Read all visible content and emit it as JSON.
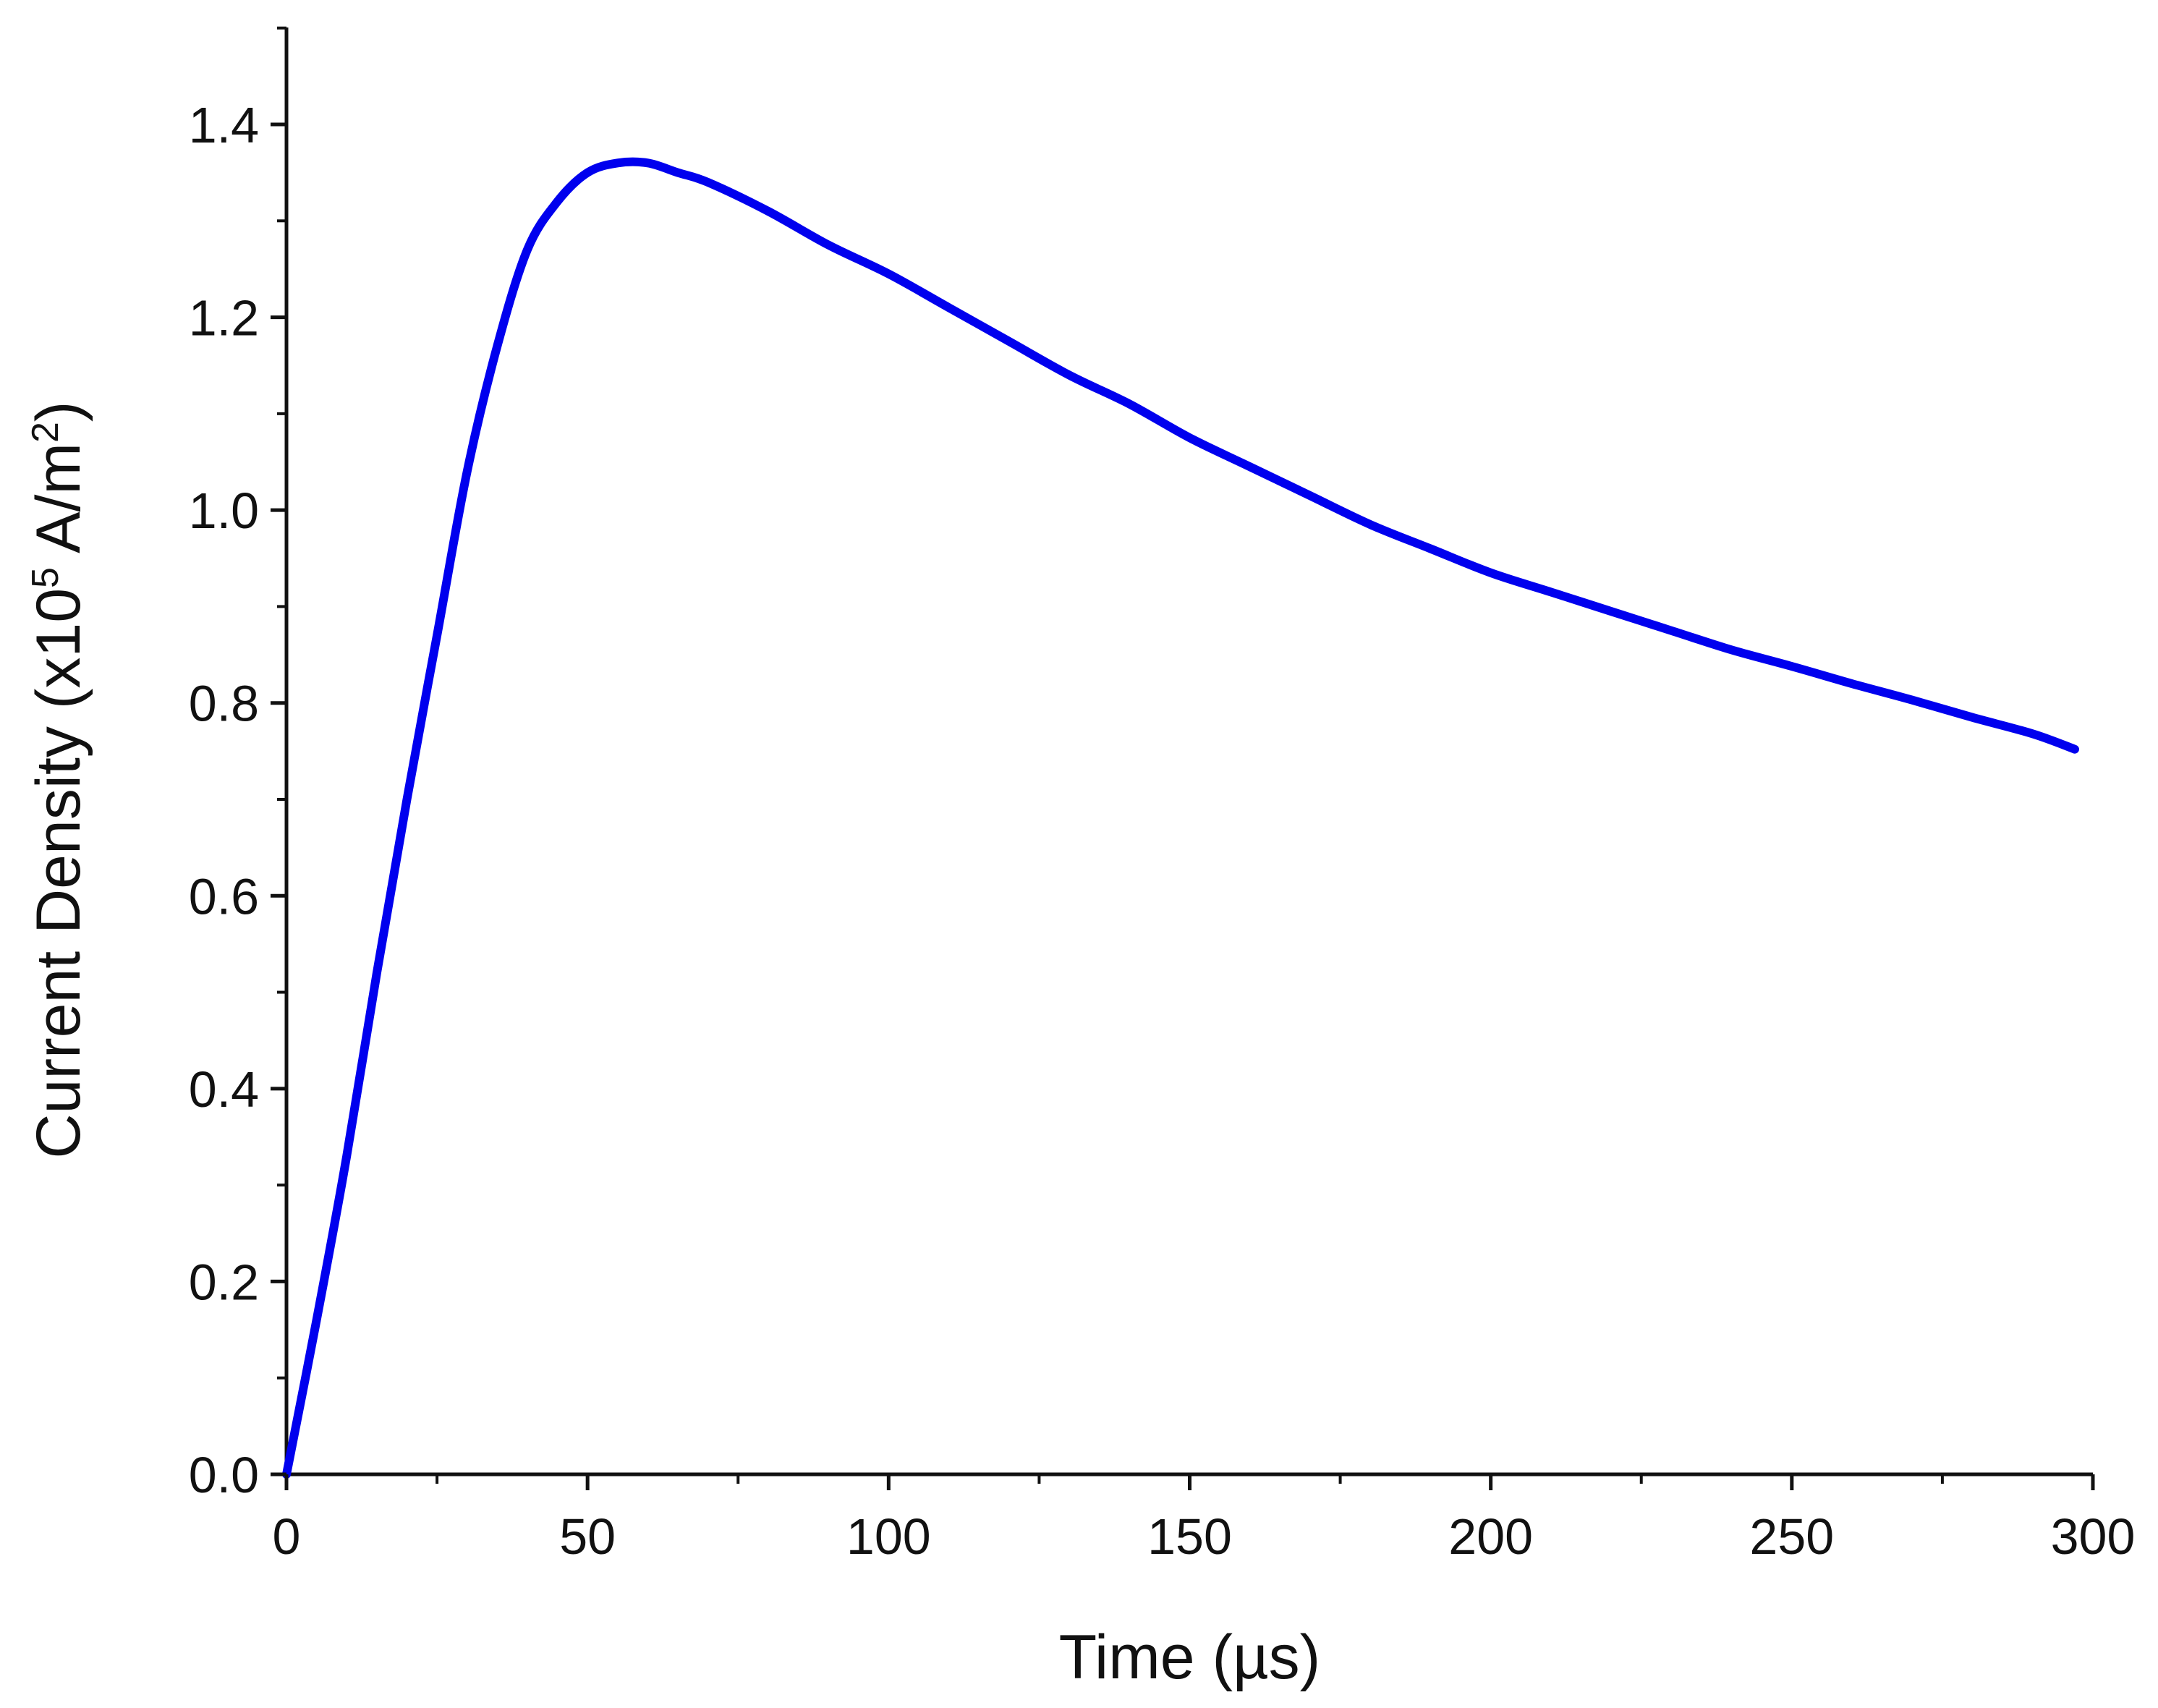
{
  "chart_data": {
    "type": "line",
    "xlabel": "Time (µs)",
    "ylabel": {
      "prefix": "Current Density   (x10",
      "superscript": "5",
      "middle": " A/m",
      "superscript2": "2",
      "suffix": ")"
    },
    "xlim": [
      0,
      300
    ],
    "ylim": [
      0,
      1.5
    ],
    "xticks": [
      0,
      50,
      100,
      150,
      200,
      250,
      300
    ],
    "xtick_labels": [
      "0",
      "50",
      "100",
      "150",
      "200",
      "250",
      "300"
    ],
    "yticks": [
      0.0,
      0.2,
      0.4,
      0.6,
      0.8,
      1.0,
      1.2,
      1.4
    ],
    "ytick_labels": [
      "0.0",
      "0.2",
      "0.4",
      "0.6",
      "0.8",
      "1.0",
      "1.2",
      "1.4"
    ],
    "grid": false,
    "legend": "none",
    "series": [
      {
        "color": "#0000ee",
        "x": [
          0,
          5,
          10,
          15,
          20,
          25,
          30,
          35,
          40,
          45,
          50,
          55,
          60,
          65,
          70,
          80,
          90,
          100,
          110,
          120,
          130,
          140,
          150,
          160,
          170,
          180,
          190,
          200,
          210,
          220,
          230,
          240,
          250,
          260,
          270,
          280,
          290,
          297
        ],
        "y": [
          0.0,
          0.16,
          0.33,
          0.52,
          0.7,
          0.87,
          1.04,
          1.17,
          1.27,
          1.32,
          1.35,
          1.36,
          1.36,
          1.35,
          1.34,
          1.31,
          1.275,
          1.245,
          1.21,
          1.175,
          1.14,
          1.11,
          1.075,
          1.045,
          1.015,
          0.985,
          0.96,
          0.935,
          0.915,
          0.895,
          0.875,
          0.855,
          0.838,
          0.82,
          0.803,
          0.785,
          0.768,
          0.752
        ]
      }
    ]
  }
}
